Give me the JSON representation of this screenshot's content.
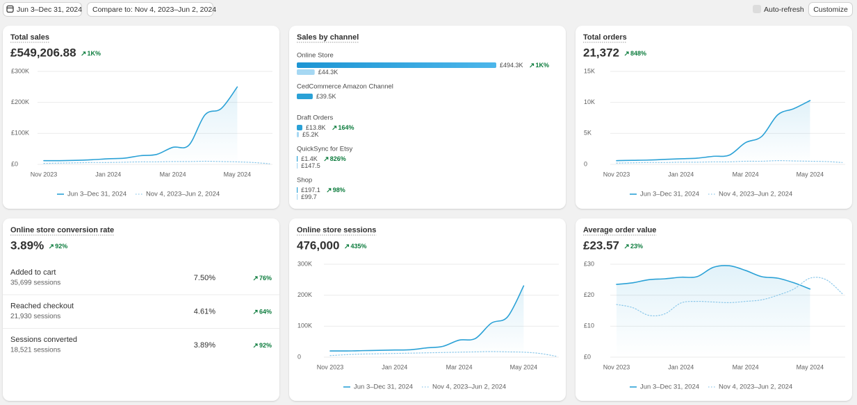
{
  "toolbar": {
    "date_range": "Jun 3–Dec 31, 2024",
    "compare": "Compare to: Nov 4, 2023–Jun 2, 2024",
    "auto_refresh": "Auto-refresh",
    "customize": "Customize"
  },
  "cards": [
    {
      "title": "Total sales",
      "value": "£549,206.88",
      "change": "1K%",
      "chart": {
        "type": "line",
        "categories": [
          "Nov 2023",
          null,
          null,
          null,
          "Jan 2024",
          null,
          null,
          null,
          "Mar 2024",
          null,
          null,
          null,
          "May 2024",
          null,
          null
        ],
        "series": [
          {
            "name": "Jun 3–Dec 31, 2024",
            "color": "#2aa1d6",
            "style": "solid",
            "values": [
              12000,
              12000,
              13000,
              15000,
              18000,
              20000,
              28000,
              32000,
              55000,
              62000,
              160000,
              180000,
              250000,
              null,
              null
            ]
          },
          {
            "name": "Nov 4, 2023–Jun 2, 2024",
            "color": "#8cc8ea",
            "style": "dotted",
            "values": [
              3000,
              4000,
              5000,
              6000,
              6000,
              7000,
              8000,
              8000,
              9000,
              9000,
              10000,
              9000,
              8000,
              6000,
              2000
            ]
          }
        ],
        "ylim": [
          0,
          300000
        ],
        "yticks": [
          {
            "value": 0,
            "label": "£0"
          },
          {
            "value": 100000,
            "label": "£100K"
          },
          {
            "value": 200000,
            "label": "£200K"
          },
          {
            "value": 300000,
            "label": "£300K"
          }
        ],
        "grid": true
      }
    },
    {
      "title": "Sales by channel",
      "chart": {
        "type": "channel-bars",
        "colors": [
          "#2aa1d6",
          "#a6d8f3"
        ],
        "channels": [
          {
            "name": "Online Store",
            "values": [
              494300,
              44300
            ],
            "value_labels": [
              "£494.3K",
              "£44.3K"
            ],
            "change": "1K%"
          },
          {
            "name": "CedCommerce Amazon Channel",
            "values": [
              39500
            ],
            "value_labels": [
              "£39.5K"
            ]
          },
          {
            "name": "Draft Orders",
            "values": [
              13800,
              5200
            ],
            "value_labels": [
              "£13.8K",
              "£5.2K"
            ],
            "change": "164%"
          },
          {
            "name": "QuickSync for Etsy",
            "values": [
              1400,
              147.5
            ],
            "value_labels": [
              "£1.4K",
              "£147.5"
            ],
            "change": "826%"
          },
          {
            "name": "Shop",
            "values": [
              197.1,
              99.7
            ],
            "value_labels": [
              "£197.1",
              "£99.7"
            ],
            "change": "98%"
          }
        ]
      }
    },
    {
      "title": "Total orders",
      "value": "21,372",
      "change": "848%",
      "chart": {
        "type": "line",
        "categories": [
          "Nov 2023",
          null,
          null,
          null,
          "Jan 2024",
          null,
          null,
          null,
          "Mar 2024",
          null,
          null,
          null,
          "May 2024",
          null,
          null
        ],
        "series": [
          {
            "name": "Jun 3–Dec 31, 2024",
            "color": "#2aa1d6",
            "style": "solid",
            "values": [
              600,
              650,
              700,
              800,
              900,
              1000,
              1300,
              1500,
              3500,
              4500,
              8000,
              9000,
              10300,
              null,
              null
            ]
          },
          {
            "name": "Nov 4, 2023–Jun 2, 2024",
            "color": "#8cc8ea",
            "style": "dotted",
            "values": [
              200,
              250,
              300,
              300,
              350,
              350,
              400,
              400,
              500,
              500,
              600,
              550,
              500,
              450,
              300
            ]
          }
        ],
        "ylim": [
          0,
          15000
        ],
        "yticks": [
          0,
          {
            "value": 5000,
            "label": "5K"
          },
          {
            "value": 10000,
            "label": "10K"
          },
          {
            "value": 15000,
            "label": "15K"
          }
        ],
        "grid": true
      }
    },
    {
      "title": "Online store conversion rate",
      "value": "3.89%",
      "change": "92%",
      "rows": [
        {
          "label": "Added to cart",
          "sessions": "35,699 sessions",
          "rate": "7.50%",
          "change": "76%"
        },
        {
          "label": "Reached checkout",
          "sessions": "21,930 sessions",
          "rate": "4.61%",
          "change": "64%"
        },
        {
          "label": "Sessions converted",
          "sessions": "18,521 sessions",
          "rate": "3.89%",
          "change": "92%"
        }
      ]
    },
    {
      "title": "Online store sessions",
      "value": "476,000",
      "change": "435%",
      "chart": {
        "type": "line",
        "categories": [
          "Nov 2023",
          null,
          null,
          null,
          "Jan 2024",
          null,
          null,
          null,
          "Mar 2024",
          null,
          null,
          null,
          "May 2024",
          null,
          null
        ],
        "series": [
          {
            "name": "Jun 3–Dec 31, 2024",
            "color": "#2aa1d6",
            "style": "solid",
            "values": [
              20000,
              20000,
              21000,
              22000,
              23000,
              24000,
              30000,
              35000,
              55000,
              60000,
              110000,
              130000,
              230000,
              null,
              null
            ]
          },
          {
            "name": "Nov 4, 2023–Jun 2, 2024",
            "color": "#8cc8ea",
            "style": "dotted",
            "values": [
              5000,
              8000,
              10000,
              11000,
              12000,
              13000,
              14000,
              15000,
              16000,
              17000,
              18000,
              17000,
              16000,
              12000,
              3000
            ]
          }
        ],
        "ylim": [
          0,
          300000
        ],
        "yticks": [
          0,
          {
            "value": 100000,
            "label": "100K"
          },
          {
            "value": 200000,
            "label": "200K"
          },
          {
            "value": 300000,
            "label": "300K"
          }
        ],
        "grid": true
      }
    },
    {
      "title": "Average order value",
      "value": "£23.57",
      "change": "23%",
      "chart": {
        "type": "line",
        "categories": [
          "Nov 2023",
          null,
          null,
          null,
          "Jan 2024",
          null,
          null,
          null,
          "Mar 2024",
          null,
          null,
          null,
          "May 2024",
          null,
          null
        ],
        "series": [
          {
            "name": "Jun 3–Dec 31, 2024",
            "color": "#2aa1d6",
            "style": "solid",
            "values": [
              23.5,
              24,
              25,
              25.3,
              25.8,
              26,
              29,
              29.5,
              28,
              26,
              25.5,
              24,
              22,
              null,
              null
            ]
          },
          {
            "name": "Nov 4, 2023–Jun 2, 2024",
            "color": "#8cc8ea",
            "style": "dotted",
            "values": [
              17,
              16,
              13.5,
              14,
              17.5,
              18,
              17.8,
              17.6,
              18,
              18.5,
              20,
              22,
              25.5,
              25,
              20.5
            ]
          }
        ],
        "ylim": [
          0,
          30
        ],
        "yticks": [
          {
            "value": 0,
            "label": "£0"
          },
          {
            "value": 10,
            "label": "£10"
          },
          {
            "value": 20,
            "label": "£20"
          },
          {
            "value": 30,
            "label": "£30"
          }
        ],
        "grid": true
      }
    }
  ]
}
